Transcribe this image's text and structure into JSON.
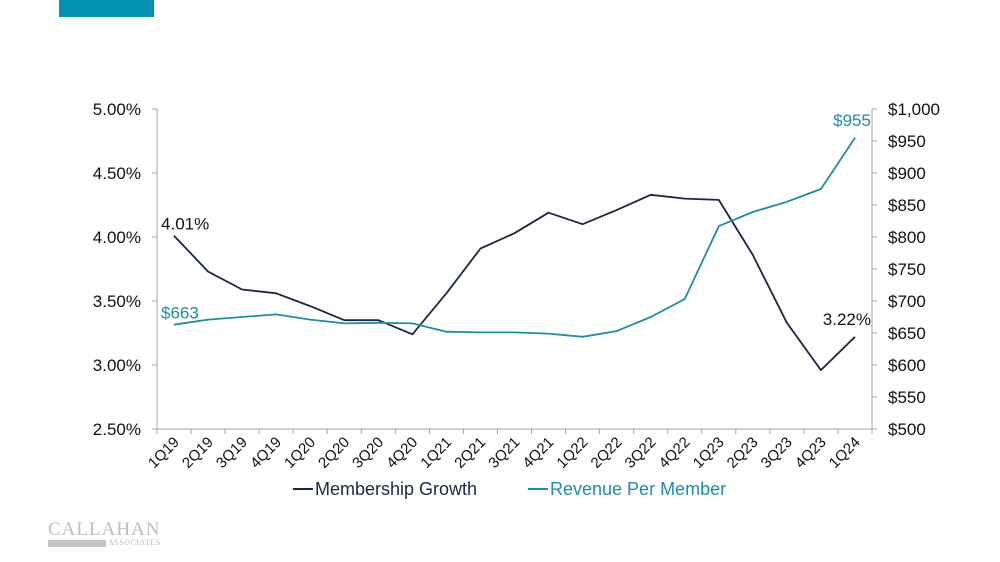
{
  "header": {
    "accent_bar_color": "#0091b3"
  },
  "logo": {
    "main": "CALLAHAN",
    "sub": "ASSOCIATES"
  },
  "chart_data": {
    "type": "line",
    "title": "",
    "xlabel": "",
    "ylabel_left": "",
    "ylabel_right": "",
    "categories": [
      "1Q19",
      "2Q19",
      "3Q19",
      "4Q19",
      "1Q20",
      "2Q20",
      "3Q20",
      "4Q20",
      "1Q21",
      "2Q21",
      "3Q21",
      "4Q21",
      "1Q22",
      "2Q22",
      "3Q22",
      "4Q22",
      "1Q23",
      "2Q23",
      "3Q23",
      "4Q23",
      "1Q24"
    ],
    "series": [
      {
        "name": "Membership Growth",
        "axis": "left",
        "color": "#1a2744",
        "values": [
          4.01,
          3.73,
          3.59,
          3.56,
          3.46,
          3.35,
          3.35,
          3.24,
          3.56,
          3.91,
          4.03,
          4.19,
          4.1,
          4.21,
          4.33,
          4.3,
          4.29,
          3.86,
          3.33,
          2.96,
          3.22
        ],
        "labels": [
          {
            "index": 0,
            "text": "4.01%"
          },
          {
            "index": 20,
            "text": "3.22%"
          }
        ]
      },
      {
        "name": "Revenue Per Member",
        "axis": "right",
        "color": "#1a8fa8",
        "values": [
          663,
          671,
          675,
          679,
          671,
          665,
          666,
          665,
          652,
          651,
          651,
          649,
          644,
          653,
          675,
          703,
          817,
          839,
          855,
          875,
          955
        ],
        "labels": [
          {
            "index": 0,
            "text": "$663"
          },
          {
            "index": 20,
            "text": "$955"
          }
        ]
      }
    ],
    "y_left": {
      "min": 2.5,
      "max": 5.0,
      "ticks": [
        2.5,
        3.0,
        3.5,
        4.0,
        4.5,
        5.0
      ],
      "tick_labels": [
        "2.50%",
        "3.00%",
        "3.50%",
        "4.00%",
        "4.50%",
        "5.00%"
      ]
    },
    "y_right": {
      "min": 500,
      "max": 1000,
      "ticks": [
        500,
        550,
        600,
        650,
        700,
        750,
        800,
        850,
        900,
        950,
        1000
      ],
      "tick_labels": [
        "$500",
        "$550",
        "$600",
        "$650",
        "$700",
        "$750",
        "$800",
        "$850",
        "$900",
        "$950",
        "$1,000"
      ]
    },
    "grid": false,
    "legend_position": "bottom-center"
  }
}
